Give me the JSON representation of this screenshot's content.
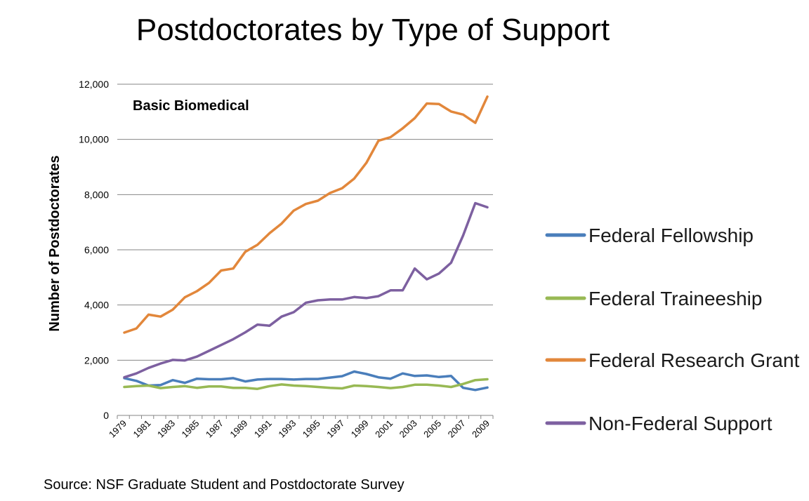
{
  "slide": {
    "title": "Postdoctorates by Type of Support",
    "source": "Source: NSF Graduate Student and Postdoctorate Survey"
  },
  "chart_data": {
    "type": "line",
    "title": "Postdoctorates by Type of Support",
    "annotation": "Basic Biomedical",
    "xlabel": "",
    "ylabel": "Number of Postdoctorates",
    "x": [
      1979,
      1980,
      1981,
      1982,
      1983,
      1984,
      1985,
      1986,
      1987,
      1988,
      1989,
      1990,
      1991,
      1992,
      1993,
      1994,
      1995,
      1996,
      1997,
      1998,
      1999,
      2000,
      2001,
      2002,
      2003,
      2004,
      2005,
      2006,
      2007,
      2008,
      2009
    ],
    "x_tick_labels": [
      "1979",
      "1981",
      "1983",
      "1985",
      "1987",
      "1989",
      "1991",
      "1993",
      "1995",
      "1997",
      "1999",
      "2001",
      "2003",
      "2005",
      "2007",
      "2009"
    ],
    "ylim": [
      0,
      12000
    ],
    "y_ticks": [
      0,
      2000,
      4000,
      6000,
      8000,
      10000,
      12000
    ],
    "y_tick_labels": [
      "0",
      "2,000",
      "4,000",
      "6,000",
      "8,000",
      "10,000",
      "12,000"
    ],
    "grid": "horizontal",
    "legend_position": "right",
    "series": [
      {
        "name": "Federal Fellowship",
        "color": "#4a7ebb",
        "values": [
          1350,
          1250,
          1080,
          1100,
          1280,
          1180,
          1330,
          1310,
          1310,
          1350,
          1230,
          1300,
          1320,
          1320,
          1300,
          1320,
          1320,
          1370,
          1420,
          1590,
          1500,
          1380,
          1330,
          1520,
          1430,
          1450,
          1390,
          1430,
          1000,
          920,
          1010
        ]
      },
      {
        "name": "Federal Traineeship",
        "color": "#98b954",
        "values": [
          1030,
          1060,
          1080,
          990,
          1030,
          1060,
          1000,
          1050,
          1050,
          1000,
          1000,
          960,
          1060,
          1120,
          1080,
          1060,
          1030,
          1000,
          980,
          1080,
          1060,
          1030,
          990,
          1030,
          1110,
          1110,
          1080,
          1030,
          1140,
          1280,
          1310
        ]
      },
      {
        "name": "Federal Research Grant",
        "color": "#e2873b",
        "values": [
          3000,
          3150,
          3650,
          3580,
          3830,
          4280,
          4500,
          4800,
          5250,
          5320,
          5930,
          6180,
          6600,
          6950,
          7420,
          7660,
          7780,
          8060,
          8230,
          8580,
          9150,
          9950,
          10080,
          10400,
          10770,
          11300,
          11280,
          11010,
          10900,
          10600,
          11550
        ]
      },
      {
        "name": "Non-Federal Support",
        "color": "#7d60a0",
        "values": [
          1380,
          1520,
          1720,
          1880,
          2010,
          1990,
          2130,
          2340,
          2550,
          2760,
          3010,
          3290,
          3250,
          3580,
          3740,
          4080,
          4170,
          4200,
          4200,
          4290,
          4250,
          4320,
          4530,
          4530,
          5320,
          4930,
          5140,
          5530,
          6520,
          7690,
          7540
        ]
      }
    ]
  }
}
